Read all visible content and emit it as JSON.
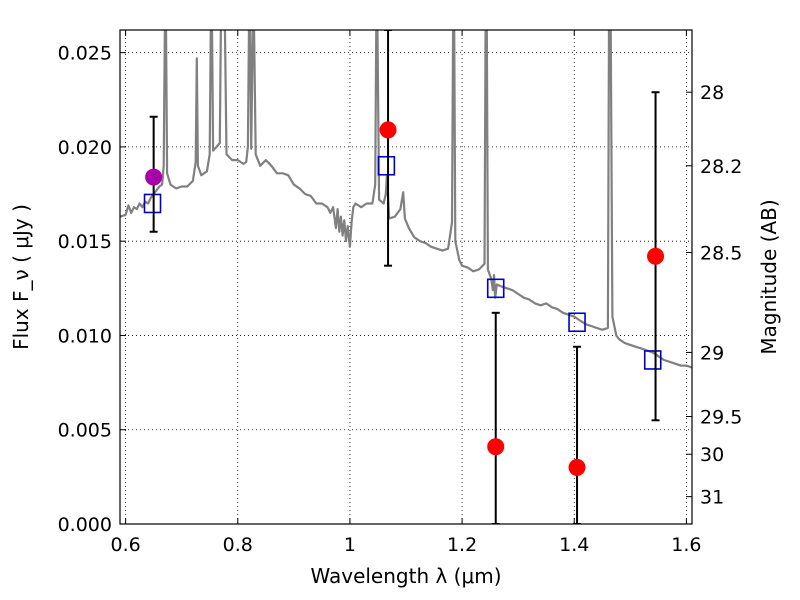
{
  "chart_data": {
    "type": "scatter",
    "xlabel": "Wavelength  λ (μm)",
    "ylabel": "Flux  F_ν  ( μJy )",
    "ylabel_right": "Magnitude (AB)",
    "xlim": [
      0.59,
      1.61
    ],
    "ylim": [
      0.0,
      0.0262
    ],
    "x_ticks": [
      0.6,
      0.8,
      1.0,
      1.2,
      1.4,
      1.6
    ],
    "x_tick_labels": [
      "0.6",
      "0.8",
      "1",
      "1.2",
      "1.4",
      "1.6"
    ],
    "y_ticks": [
      0.0,
      0.005,
      0.01,
      0.015,
      0.02,
      0.025
    ],
    "y_tick_labels": [
      "0.000",
      "0.005",
      "0.010",
      "0.015",
      "0.020",
      "0.025"
    ],
    "right_ticks": [
      {
        "flux": 0.0229,
        "label": "28"
      },
      {
        "flux": 0.019,
        "label": "28.2"
      },
      {
        "flux": 0.0144,
        "label": "28.5"
      },
      {
        "flux": 0.0091,
        "label": "29"
      },
      {
        "flux": 0.0057,
        "label": "29.5"
      },
      {
        "flux": 0.0037,
        "label": "30"
      },
      {
        "flux": 0.00145,
        "label": "31"
      }
    ],
    "grid": true,
    "series": [
      {
        "kind": "line",
        "color": "#808080",
        "points": [
          [
            0.59,
            0.0163
          ],
          [
            0.6,
            0.0164
          ],
          [
            0.605,
            0.0169
          ],
          [
            0.61,
            0.0165
          ],
          [
            0.615,
            0.0168
          ],
          [
            0.62,
            0.0167
          ],
          [
            0.625,
            0.017
          ],
          [
            0.63,
            0.0168
          ],
          [
            0.635,
            0.0171
          ],
          [
            0.64,
            0.017
          ],
          [
            0.645,
            0.0173
          ],
          [
            0.65,
            0.0175
          ],
          [
            0.655,
            0.0177
          ],
          [
            0.66,
            0.0179
          ],
          [
            0.665,
            0.018
          ],
          [
            0.668,
            0.019
          ],
          [
            0.67,
            0.0265
          ],
          [
            0.672,
            0.0265
          ],
          [
            0.674,
            0.0186
          ],
          [
            0.68,
            0.018
          ],
          [
            0.69,
            0.0178
          ],
          [
            0.7,
            0.0179
          ],
          [
            0.71,
            0.0179
          ],
          [
            0.72,
            0.0182
          ],
          [
            0.725,
            0.0192
          ],
          [
            0.727,
            0.0247
          ],
          [
            0.729,
            0.019
          ],
          [
            0.735,
            0.0185
          ],
          [
            0.745,
            0.0187
          ],
          [
            0.75,
            0.0196
          ],
          [
            0.752,
            0.0265
          ],
          [
            0.754,
            0.0265
          ],
          [
            0.756,
            0.0198
          ],
          [
            0.762,
            0.02
          ],
          [
            0.768,
            0.0202
          ],
          [
            0.77,
            0.0265
          ],
          [
            0.772,
            0.0265
          ],
          [
            0.775,
            0.0265
          ],
          [
            0.777,
            0.0265
          ],
          [
            0.78,
            0.0196
          ],
          [
            0.79,
            0.0193
          ],
          [
            0.8,
            0.0193
          ],
          [
            0.81,
            0.0191
          ],
          [
            0.815,
            0.0192
          ],
          [
            0.818,
            0.02
          ],
          [
            0.82,
            0.0265
          ],
          [
            0.822,
            0.0265
          ],
          [
            0.824,
            0.0199
          ],
          [
            0.827,
            0.0265
          ],
          [
            0.829,
            0.0265
          ],
          [
            0.832,
            0.0196
          ],
          [
            0.84,
            0.019
          ],
          [
            0.85,
            0.0193
          ],
          [
            0.86,
            0.019
          ],
          [
            0.87,
            0.0186
          ],
          [
            0.88,
            0.0186
          ],
          [
            0.89,
            0.0185
          ],
          [
            0.9,
            0.018
          ],
          [
            0.91,
            0.0178
          ],
          [
            0.92,
            0.0175
          ],
          [
            0.93,
            0.0174
          ],
          [
            0.94,
            0.017
          ],
          [
            0.95,
            0.017
          ],
          [
            0.96,
            0.0168
          ],
          [
            0.965,
            0.0165
          ],
          [
            0.97,
            0.0168
          ],
          [
            0.975,
            0.0157
          ],
          [
            0.978,
            0.0167
          ],
          [
            0.981,
            0.0155
          ],
          [
            0.984,
            0.0163
          ],
          [
            0.987,
            0.0153
          ],
          [
            0.99,
            0.0161
          ],
          [
            0.993,
            0.015
          ],
          [
            0.996,
            0.0158
          ],
          [
            1.0,
            0.0147
          ],
          [
            1.003,
            0.016
          ],
          [
            1.006,
            0.0168
          ],
          [
            1.01,
            0.017
          ],
          [
            1.02,
            0.0168
          ],
          [
            1.03,
            0.017
          ],
          [
            1.04,
            0.017
          ],
          [
            1.045,
            0.018
          ],
          [
            1.047,
            0.0265
          ],
          [
            1.049,
            0.0265
          ],
          [
            1.052,
            0.0172
          ],
          [
            1.06,
            0.017
          ],
          [
            1.064,
            0.0175
          ],
          [
            1.066,
            0.0185
          ],
          [
            1.07,
            0.0162
          ],
          [
            1.08,
            0.0163
          ],
          [
            1.09,
            0.0167
          ],
          [
            1.095,
            0.0176
          ],
          [
            1.098,
            0.0162
          ],
          [
            1.105,
            0.0157
          ],
          [
            1.115,
            0.0152
          ],
          [
            1.125,
            0.015
          ],
          [
            1.135,
            0.0149
          ],
          [
            1.145,
            0.0147
          ],
          [
            1.155,
            0.0146
          ],
          [
            1.165,
            0.0145
          ],
          [
            1.175,
            0.0146
          ],
          [
            1.182,
            0.016
          ],
          [
            1.184,
            0.0265
          ],
          [
            1.186,
            0.0265
          ],
          [
            1.188,
            0.015
          ],
          [
            1.195,
            0.014
          ],
          [
            1.2,
            0.0137
          ],
          [
            1.21,
            0.0136
          ],
          [
            1.22,
            0.0134
          ],
          [
            1.23,
            0.0135
          ],
          [
            1.24,
            0.0138
          ],
          [
            1.242,
            0.0265
          ],
          [
            1.244,
            0.0265
          ],
          [
            1.246,
            0.0135
          ],
          [
            1.252,
            0.013
          ],
          [
            1.255,
            0.0124
          ],
          [
            1.257,
            0.0132
          ],
          [
            1.259,
            0.012
          ],
          [
            1.262,
            0.0127
          ],
          [
            1.27,
            0.0126
          ],
          [
            1.28,
            0.0125
          ],
          [
            1.29,
            0.0124
          ],
          [
            1.3,
            0.0122
          ],
          [
            1.31,
            0.012
          ],
          [
            1.32,
            0.0119
          ],
          [
            1.33,
            0.0117
          ],
          [
            1.34,
            0.0116
          ],
          [
            1.35,
            0.0117
          ],
          [
            1.36,
            0.0115
          ],
          [
            1.37,
            0.0114
          ],
          [
            1.38,
            0.0112
          ],
          [
            1.39,
            0.0111
          ],
          [
            1.4,
            0.011
          ],
          [
            1.41,
            0.0108
          ],
          [
            1.42,
            0.0106
          ],
          [
            1.43,
            0.0105
          ],
          [
            1.44,
            0.0104
          ],
          [
            1.45,
            0.0103
          ],
          [
            1.46,
            0.0104
          ],
          [
            1.462,
            0.0265
          ],
          [
            1.465,
            0.0265
          ],
          [
            1.468,
            0.011
          ],
          [
            1.475,
            0.01
          ],
          [
            1.48,
            0.0098
          ],
          [
            1.49,
            0.0096
          ],
          [
            1.5,
            0.0095
          ],
          [
            1.51,
            0.0094
          ],
          [
            1.52,
            0.0093
          ],
          [
            1.53,
            0.0092
          ],
          [
            1.54,
            0.0091
          ],
          [
            1.55,
            0.0089
          ],
          [
            1.56,
            0.0087
          ],
          [
            1.57,
            0.0086
          ],
          [
            1.58,
            0.0085
          ],
          [
            1.59,
            0.0084
          ],
          [
            1.6,
            0.0084
          ],
          [
            1.61,
            0.0083
          ]
        ]
      },
      {
        "kind": "markers",
        "marker": "square",
        "color": "#0000cc",
        "points": [
          [
            0.648,
            0.017
          ],
          [
            1.065,
            0.019
          ],
          [
            1.26,
            0.0125
          ],
          [
            1.405,
            0.0107
          ],
          [
            1.54,
            0.0087
          ]
        ]
      },
      {
        "kind": "markers",
        "marker": "circle",
        "color": "#ff0000",
        "points": [
          {
            "x": 1.068,
            "y": 0.0209,
            "yerr": [
              0.0137,
              0.0262
            ]
          },
          {
            "x": 1.26,
            "y": 0.0041,
            "yerr": [
              0.0,
              0.0112
            ]
          },
          {
            "x": 1.405,
            "y": 0.003,
            "yerr": [
              0.0,
              0.0094
            ]
          },
          {
            "x": 1.545,
            "y": 0.0142,
            "yerr": [
              0.0055,
              0.0229
            ]
          }
        ]
      },
      {
        "kind": "markers",
        "marker": "circle",
        "color": "#aa00aa",
        "points": [
          {
            "x": 0.65,
            "y": 0.0184,
            "yerr": [
              0.0155,
              0.0216
            ]
          }
        ]
      }
    ]
  }
}
